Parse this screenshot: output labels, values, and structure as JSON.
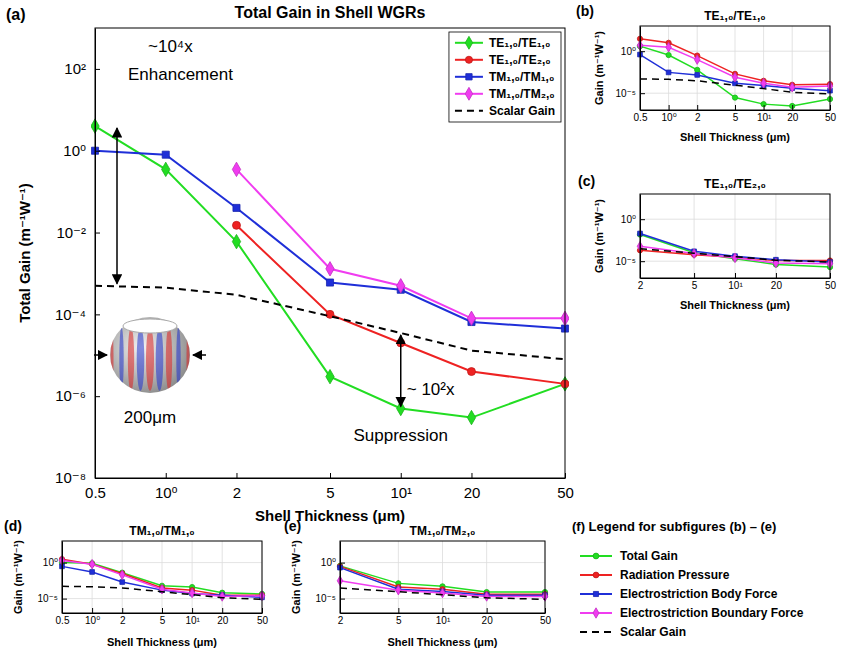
{
  "chart_data": [
    {
      "type": "line",
      "panel_label": "(a)",
      "title": "Total Gain in Shell WGRs",
      "x_label": "Shell Thickness (μm)",
      "y_label": "Total Gain (m⁻¹W⁻¹)",
      "log": true,
      "grid": false,
      "legend": "upper right",
      "xlim": [
        0.5,
        50
      ],
      "ylim": [
        1e-08,
        1000
      ],
      "xticks": [
        0.5,
        {
          "value": 1,
          "label": "10⁰"
        },
        2,
        5,
        {
          "value": 10,
          "label": "10¹"
        },
        20,
        50
      ],
      "yticks": [
        {
          "value": 1e-08,
          "label": "10⁻⁸"
        },
        {
          "value": 1e-06,
          "label": "10⁻⁶"
        },
        {
          "value": 0.0001,
          "label": "10⁻⁴"
        },
        {
          "value": 0.01,
          "label": "10⁻²"
        },
        {
          "value": 1,
          "label": "10⁰"
        },
        {
          "value": 100,
          "label": "10²"
        }
      ],
      "annotations": [
        "~10⁴x",
        "Enhancement",
        "~ 10²x",
        "Suppression",
        "200μm"
      ],
      "series": [
        {
          "name": "TE₁,₀/TE₁,₀",
          "color": "#22dd22",
          "marker": "diamond",
          "line_style": "solid",
          "x": [
            0.5,
            1,
            2,
            5,
            10,
            20,
            50
          ],
          "values": [
            4,
            0.35,
            0.006,
            3e-06,
            5e-07,
            3e-07,
            2e-06
          ]
        },
        {
          "name": "TE₁,₀/TE₂,₀",
          "color": "#ee2222",
          "marker": "circle",
          "line_style": "solid",
          "x": [
            2,
            5,
            10,
            20,
            50
          ],
          "values": [
            0.015,
            0.0001,
            2e-05,
            4e-06,
            2e-06
          ]
        },
        {
          "name": "TM₁,₀/TM₁,₀",
          "color": "#1f2fd8",
          "marker": "square",
          "line_style": "solid",
          "x": [
            0.5,
            1,
            2,
            5,
            10,
            20,
            50
          ],
          "values": [
            1,
            0.8,
            0.04,
            0.0006,
            0.0004,
            6.5e-05,
            4.5e-05
          ]
        },
        {
          "name": "TM₁,₀/TM₂,₀",
          "color": "#f03cf0",
          "marker": "diamond",
          "line_style": "solid",
          "x": [
            2,
            5,
            10,
            20,
            50
          ],
          "values": [
            0.35,
            0.0013,
            0.0005,
            8e-05,
            8e-05
          ]
        },
        {
          "name": "Scalar Gain",
          "color": "#000000",
          "marker": "none",
          "line_style": "dashed",
          "x": [
            0.5,
            1,
            2,
            5,
            10,
            20,
            50
          ],
          "values": [
            0.0005,
            0.00045,
            0.0003,
            9e-05,
            3.5e-05,
            1.3e-05,
            8e-06
          ]
        }
      ]
    },
    {
      "type": "line",
      "panel_label": "(b)",
      "title": "TE₁,₀/TE₁,₀",
      "x_label": "Shell Thickness (μm)",
      "y_label": "Gain (m⁻¹W⁻¹)",
      "log": true,
      "grid": true,
      "xlim": [
        0.5,
        50
      ],
      "ylim": [
        1e-07,
        1000
      ],
      "xticks": [
        0.5,
        {
          "value": 1,
          "label": "10⁰"
        },
        2,
        5,
        {
          "value": 10,
          "label": "10¹"
        },
        20,
        50
      ],
      "yticks": [
        {
          "value": 1e-05,
          "label": "10⁻⁵"
        },
        {
          "value": 1,
          "label": "10⁰"
        }
      ],
      "series": [
        {
          "color": "#22dd22",
          "marker": "circle",
          "line_style": "solid",
          "x": [
            0.5,
            1,
            2,
            5,
            10,
            20,
            50
          ],
          "values": [
            4,
            0.35,
            0.006,
            3e-06,
            5e-07,
            3e-07,
            2e-06
          ]
        },
        {
          "color": "#ee2222",
          "marker": "circle",
          "line_style": "solid",
          "x": [
            0.5,
            1,
            2,
            5,
            10,
            20,
            50
          ],
          "values": [
            30,
            10,
            0.3,
            0.002,
            0.0003,
            0.0001,
            0.00012
          ]
        },
        {
          "color": "#1f2fd8",
          "marker": "square",
          "line_style": "solid",
          "x": [
            0.5,
            1,
            2,
            5,
            10,
            20,
            50
          ],
          "values": [
            0.4,
            0.003,
            0.0015,
            0.00015,
            8e-05,
            4e-05,
            2e-05
          ]
        },
        {
          "color": "#f03cf0",
          "marker": "diamond",
          "line_style": "solid",
          "x": [
            0.5,
            1,
            2,
            5,
            10,
            20,
            50
          ],
          "values": [
            5,
            3,
            0.1,
            0.0008,
            0.00015,
            5e-05,
            7e-05
          ]
        },
        {
          "color": "#000000",
          "marker": "none",
          "line_style": "dashed",
          "x": [
            0.5,
            1,
            2,
            5,
            10,
            20,
            50
          ],
          "values": [
            0.0005,
            0.00045,
            0.0003,
            9e-05,
            3.5e-05,
            1.3e-05,
            8e-06
          ]
        }
      ]
    },
    {
      "type": "line",
      "panel_label": "(c)",
      "title": "TE₁,₀/TE₂,₀",
      "x_label": "Shell Thickness (μm)",
      "y_label": "Gain (m⁻¹W⁻¹)",
      "log": true,
      "grid": true,
      "xlim": [
        2,
        50
      ],
      "ylim": [
        1e-07,
        1000
      ],
      "xticks": [
        2,
        5,
        {
          "value": 10,
          "label": "10¹"
        },
        20,
        50
      ],
      "yticks": [
        {
          "value": 1e-05,
          "label": "10⁻⁵"
        },
        {
          "value": 1,
          "label": "10⁰"
        }
      ],
      "series": [
        {
          "color": "#22dd22",
          "marker": "circle",
          "line_style": "solid",
          "x": [
            2,
            5,
            10,
            20,
            50
          ],
          "values": [
            0.015,
            0.0001,
            2e-05,
            4e-06,
            2e-06
          ]
        },
        {
          "color": "#ee2222",
          "marker": "circle",
          "line_style": "solid",
          "x": [
            2,
            5,
            10,
            20,
            50
          ],
          "values": [
            0.0002,
            6e-05,
            3e-05,
            1.2e-05,
            1.2e-05
          ]
        },
        {
          "color": "#1f2fd8",
          "marker": "square",
          "line_style": "solid",
          "x": [
            2,
            5,
            10,
            20,
            50
          ],
          "values": [
            0.02,
            0.00015,
            4e-05,
            1.5e-05,
            8e-06
          ]
        },
        {
          "color": "#f03cf0",
          "marker": "diamond",
          "line_style": "solid",
          "x": [
            2,
            5,
            10,
            20,
            50
          ],
          "values": [
            0.0006,
            8e-05,
            2.5e-05,
            6e-06,
            5e-06
          ]
        },
        {
          "color": "#000000",
          "marker": "none",
          "line_style": "dashed",
          "x": [
            2,
            5,
            10,
            20,
            50
          ],
          "values": [
            0.0003,
            9e-05,
            3.5e-05,
            1.3e-05,
            8e-06
          ]
        }
      ]
    },
    {
      "type": "line",
      "panel_label": "(d)",
      "title": "TM₁,₀/TM₁,₀",
      "x_label": "Shell Thickness (μm)",
      "y_label": "Gain (m⁻¹W⁻¹)",
      "log": true,
      "grid": true,
      "xlim": [
        0.5,
        50
      ],
      "ylim": [
        1e-07,
        1000
      ],
      "xticks": [
        0.5,
        {
          "value": 1,
          "label": "10⁰"
        },
        2,
        5,
        {
          "value": 10,
          "label": "10¹"
        },
        20,
        50
      ],
      "yticks": [
        {
          "value": 1e-05,
          "label": "10⁻⁵"
        },
        {
          "value": 1,
          "label": "10⁰"
        }
      ],
      "series": [
        {
          "color": "#22dd22",
          "marker": "circle",
          "line_style": "solid",
          "x": [
            0.5,
            1,
            2,
            5,
            10,
            20,
            50
          ],
          "values": [
            1,
            0.8,
            0.04,
            0.0006,
            0.0004,
            6.5e-05,
            4.5e-05
          ]
        },
        {
          "color": "#ee2222",
          "marker": "circle",
          "line_style": "solid",
          "x": [
            0.5,
            1,
            2,
            5,
            10,
            20,
            50
          ],
          "values": [
            3,
            0.6,
            0.03,
            0.0003,
            0.00015,
            3e-05,
            3e-05
          ]
        },
        {
          "color": "#1f2fd8",
          "marker": "square",
          "line_style": "solid",
          "x": [
            0.5,
            1,
            2,
            5,
            10,
            20,
            50
          ],
          "values": [
            0.3,
            0.05,
            0.002,
            0.00015,
            5e-05,
            3e-05,
            1.5e-05
          ]
        },
        {
          "color": "#f03cf0",
          "marker": "diamond",
          "line_style": "solid",
          "x": [
            0.5,
            1,
            2,
            5,
            10,
            20,
            50
          ],
          "values": [
            2,
            0.6,
            0.02,
            0.0002,
            6e-05,
            2e-05,
            2.5e-05
          ]
        },
        {
          "color": "#000000",
          "marker": "none",
          "line_style": "dashed",
          "x": [
            0.5,
            1,
            2,
            5,
            10,
            20,
            50
          ],
          "values": [
            0.0005,
            0.00045,
            0.0003,
            9e-05,
            3.5e-05,
            1.3e-05,
            8e-06
          ]
        }
      ]
    },
    {
      "type": "line",
      "panel_label": "(e)",
      "title": "TM₁,₀/TM₂,₀",
      "x_label": "Shell Thickness (μm)",
      "y_label": "Gain (m⁻¹W⁻¹)",
      "log": true,
      "grid": true,
      "xlim": [
        2,
        50
      ],
      "ylim": [
        1e-07,
        1000
      ],
      "xticks": [
        2,
        5,
        {
          "value": 10,
          "label": "10¹"
        },
        20,
        50
      ],
      "yticks": [
        {
          "value": 1e-05,
          "label": "10⁻⁵"
        },
        {
          "value": 1,
          "label": "10⁰"
        }
      ],
      "series": [
        {
          "color": "#22dd22",
          "marker": "circle",
          "line_style": "solid",
          "x": [
            2,
            5,
            10,
            20,
            50
          ],
          "values": [
            0.35,
            0.0013,
            0.0005,
            8e-05,
            8e-05
          ]
        },
        {
          "color": "#ee2222",
          "marker": "circle",
          "line_style": "solid",
          "x": [
            2,
            5,
            10,
            20,
            50
          ],
          "values": [
            0.3,
            0.0004,
            0.0002,
            4e-05,
            4e-05
          ]
        },
        {
          "color": "#1f2fd8",
          "marker": "square",
          "line_style": "solid",
          "x": [
            2,
            5,
            10,
            20,
            50
          ],
          "values": [
            0.2,
            0.0002,
            0.0001,
            3e-05,
            3e-05
          ]
        },
        {
          "color": "#f03cf0",
          "marker": "diamond",
          "line_style": "solid",
          "x": [
            2,
            5,
            10,
            20,
            50
          ],
          "values": [
            0.003,
            0.00015,
            6e-05,
            2e-05,
            2e-05
          ]
        },
        {
          "color": "#000000",
          "marker": "none",
          "line_style": "dashed",
          "x": [
            2,
            5,
            10,
            20,
            50
          ],
          "values": [
            0.0003,
            9e-05,
            3.5e-05,
            1.3e-05,
            8e-06
          ]
        }
      ]
    }
  ],
  "shared_legend": {
    "title": "(f) Legend for subfigures (b) – (e)",
    "items": [
      {
        "name": "Total Gain",
        "color": "#22dd22",
        "marker": "circle",
        "line_style": "solid"
      },
      {
        "name": "Radiation Pressure",
        "color": "#ee2222",
        "marker": "circle",
        "line_style": "solid"
      },
      {
        "name": "Electrostriction Body Force",
        "color": "#1f2fd8",
        "marker": "square",
        "line_style": "solid"
      },
      {
        "name": "Electrostriction Boundary Force",
        "color": "#f03cf0",
        "marker": "diamond",
        "line_style": "solid"
      },
      {
        "name": "Scalar Gain",
        "color": "#000000",
        "marker": "none",
        "line_style": "dashed"
      }
    ]
  }
}
